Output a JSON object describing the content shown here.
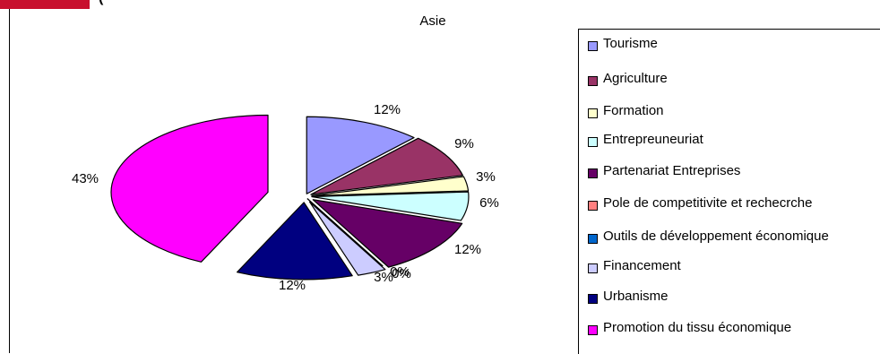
{
  "header": {
    "cut_text": "(",
    "accent_color": "#c8102e"
  },
  "chart_data": {
    "type": "pie",
    "title": "Asie",
    "legend_position": "right",
    "categories": [
      "Tourisme",
      "Agriculture",
      "Formation",
      "Entrepreuneuriat",
      "Partenariat Entreprises",
      "Pole de competitivite et rechecrche",
      "Outils de développement économique",
      "Financement",
      "Urbanisme",
      "Promotion du tissu économique"
    ],
    "values": [
      12,
      9,
      3,
      6,
      12,
      0,
      0,
      3,
      12,
      43
    ],
    "labels": [
      "12%",
      "9%",
      "3%",
      "6%",
      "12%",
      "0%",
      "0%",
      "3%",
      "12%",
      "43%"
    ],
    "colors": [
      "#9999ff",
      "#993366",
      "#ffffcc",
      "#ccffff",
      "#660066",
      "#ff8080",
      "#0066cc",
      "#ccccff",
      "#000080",
      "#ff00ff"
    ]
  }
}
